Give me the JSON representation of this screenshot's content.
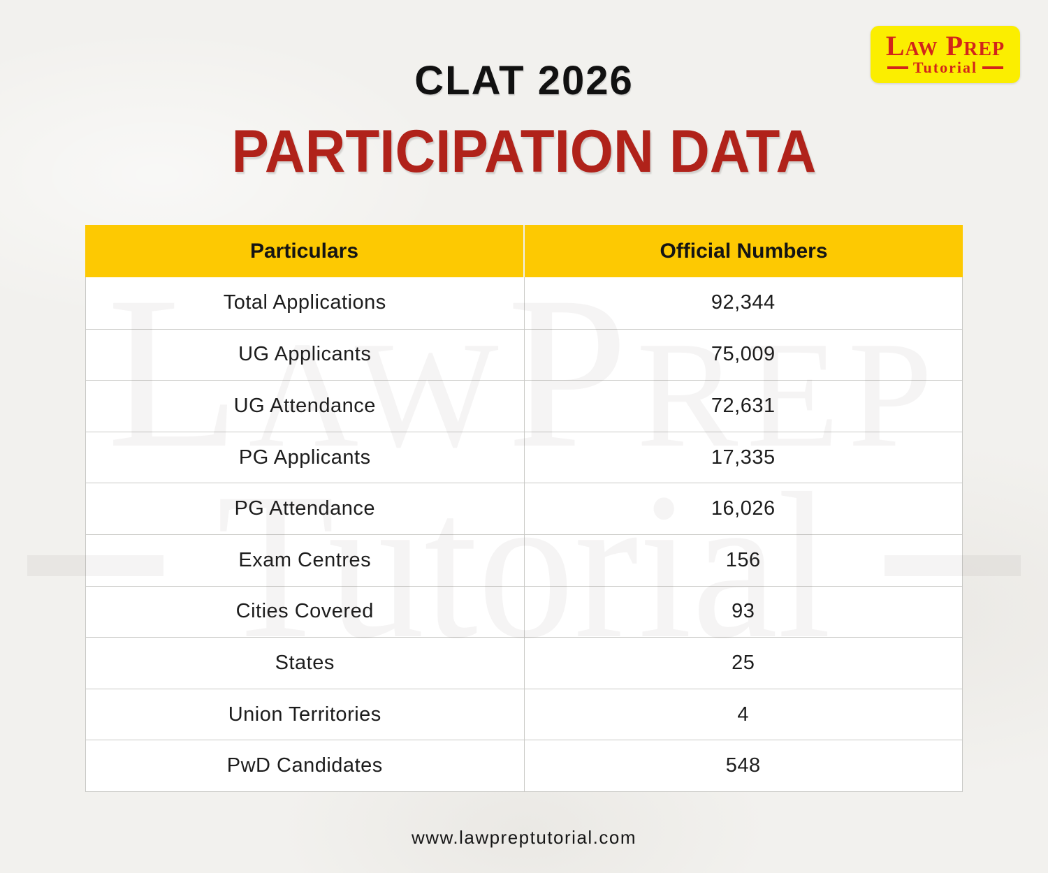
{
  "page": {
    "subtitle": "CLAT 2026",
    "title": "PARTICIPATION DATA",
    "footer_url": "www.lawpreptutorial.com"
  },
  "logo": {
    "wordmark": "Law Prep",
    "subtitle": "Tutorial"
  },
  "watermark": {
    "line1": "LawPrep",
    "line2": "Tutorial"
  },
  "table": {
    "headers": [
      "Particulars",
      "Official Numbers"
    ],
    "rows": [
      {
        "label": "Total Applications",
        "value": "92,344"
      },
      {
        "label": "UG Applicants",
        "value": "75,009"
      },
      {
        "label": "UG Attendance",
        "value": "72,631"
      },
      {
        "label": "PG Applicants",
        "value": "17,335"
      },
      {
        "label": "PG Attendance",
        "value": "16,026"
      },
      {
        "label": "Exam Centres",
        "value": "156"
      },
      {
        "label": "Cities Covered",
        "value": "93"
      },
      {
        "label": "States",
        "value": "25"
      },
      {
        "label": "Union Territories",
        "value": "4"
      },
      {
        "label": "PwD Candidates",
        "value": "548"
      }
    ]
  },
  "colors": {
    "background": "#F2F1EE",
    "table_header_yellow": "#FDC902",
    "logo_yellow": "#FBEE00",
    "logo_red": "#D2251A",
    "title_red": "#B0221A",
    "text_black": "#141414"
  },
  "chart_data": {
    "type": "table",
    "title": "CLAT 2026 Participation Data",
    "columns": [
      "Particulars",
      "Official Numbers"
    ],
    "rows": [
      [
        "Total Applications",
        92344
      ],
      [
        "UG Applicants",
        75009
      ],
      [
        "UG Attendance",
        72631
      ],
      [
        "PG Applicants",
        17335
      ],
      [
        "PG Attendance",
        16026
      ],
      [
        "Exam Centres",
        156
      ],
      [
        "Cities Covered",
        93
      ],
      [
        "States",
        25
      ],
      [
        "Union Territories",
        4
      ],
      [
        "PwD Candidates",
        548
      ]
    ]
  }
}
